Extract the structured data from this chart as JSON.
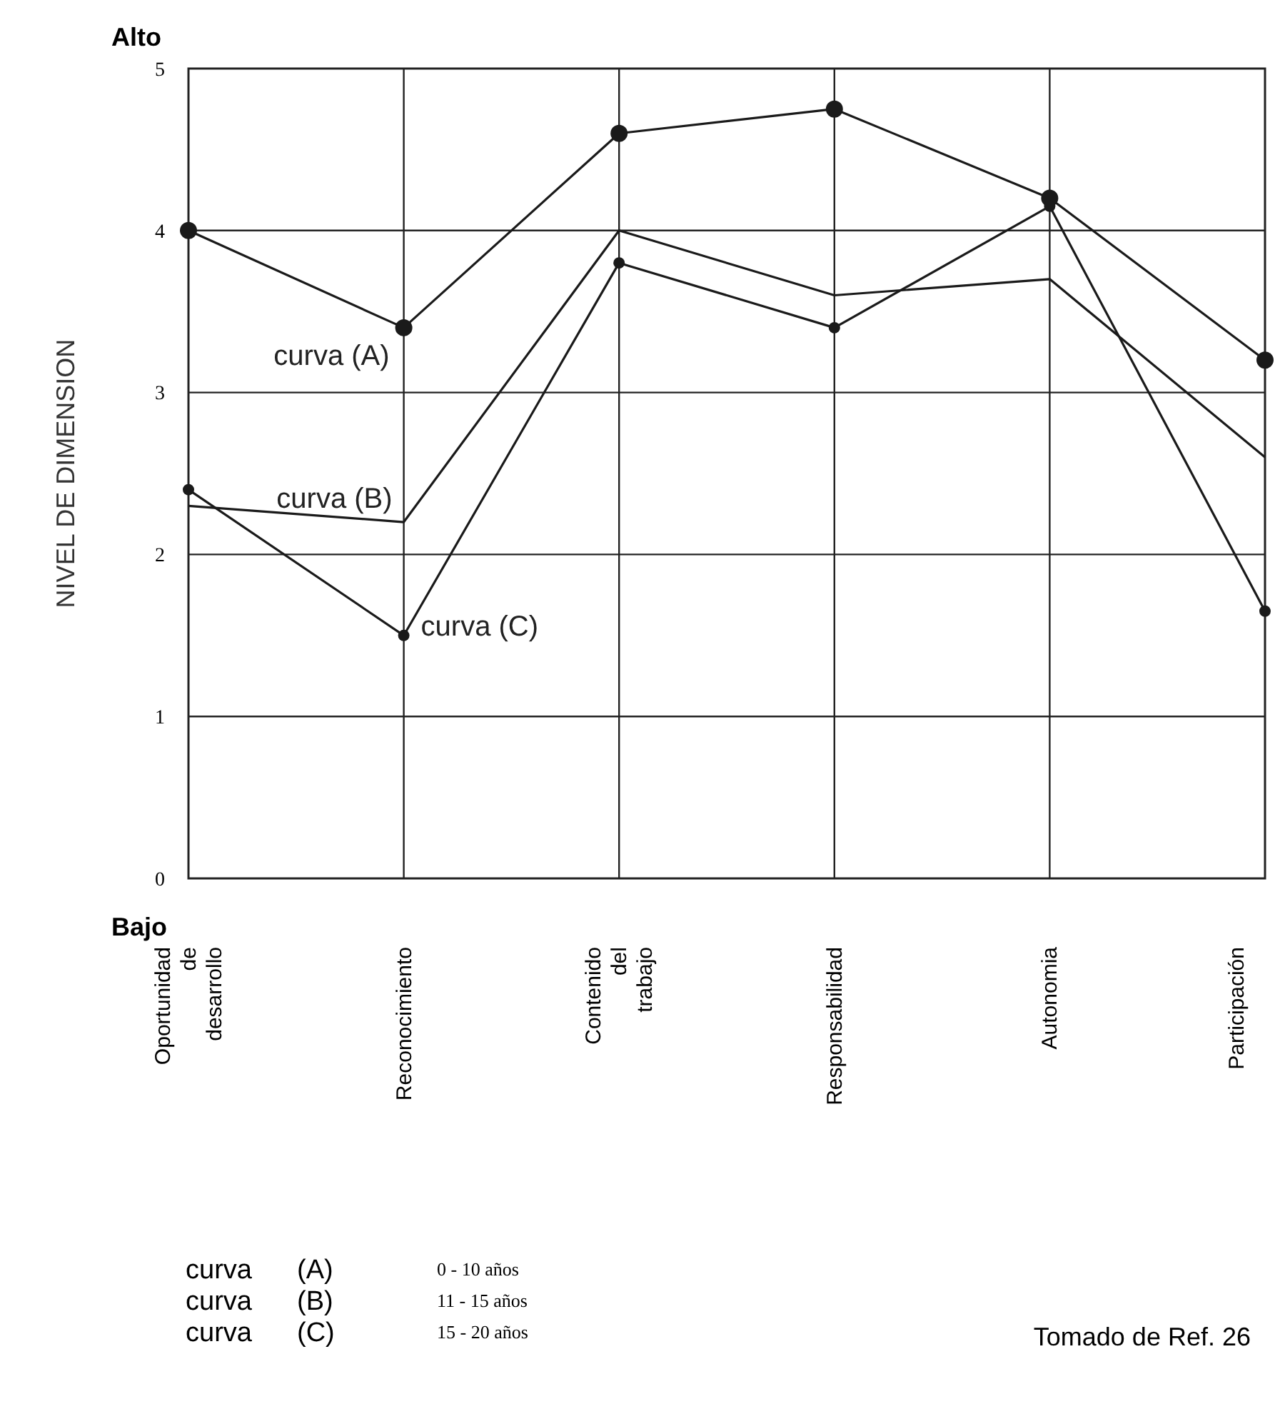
{
  "chart_data": {
    "type": "line",
    "ylabel": "NIVEL DE DIMENSION",
    "categories": [
      "Oportunidad de desarrollo",
      "Reconocimiento",
      "Contenido del trabajo",
      "Responsabilidad",
      "Autonomia",
      "Participación"
    ],
    "series": [
      {
        "name": "curva (A)",
        "color": "#1a1a1a",
        "marker": "circle",
        "values": [
          4.0,
          3.4,
          4.6,
          4.75,
          4.2,
          3.2
        ]
      },
      {
        "name": "curva (B)",
        "color": "#1a1a1a",
        "marker": "none",
        "values": [
          2.3,
          2.2,
          4.0,
          3.6,
          3.7,
          2.6
        ]
      },
      {
        "name": "curva (C)",
        "color": "#1a1a1a",
        "marker": "circle",
        "values": [
          2.4,
          1.5,
          3.8,
          3.4,
          4.15,
          1.65
        ]
      }
    ],
    "ylim": [
      0,
      5
    ],
    "yticks": [
      0,
      1,
      2,
      3,
      4,
      5
    ],
    "grid": true,
    "legend": "bottom left",
    "annotations": [
      "Alto",
      "Bajo",
      "0 - 10 años",
      "11 - 15 años",
      "15 - 20 años",
      "Tomado de Ref. 26"
    ]
  }
}
